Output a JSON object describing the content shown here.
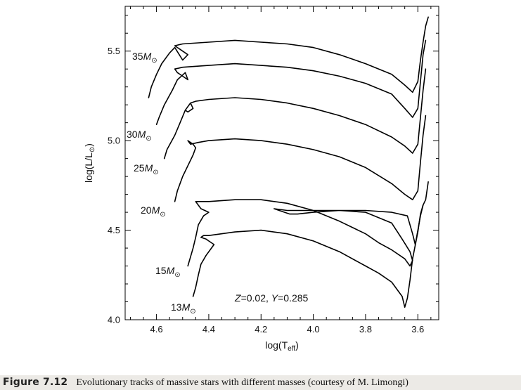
{
  "chart_data": {
    "type": "line",
    "title": "",
    "xlabel": "log(T",
    "xlabel_sub": "eff",
    "xlabel_end": ")",
    "ylabel": "log(L/L",
    "ylabel_sub": "⊙",
    "ylabel_end": ")",
    "xlim": [
      4.72,
      3.52
    ],
    "ylim": [
      4.0,
      5.75
    ],
    "x_reversed": true,
    "xticks": [
      4.6,
      4.4,
      4.2,
      4.0,
      3.8,
      3.6
    ],
    "xtick_labels": [
      "4.6",
      "4.4",
      "4.2",
      "4.0",
      "3.8",
      "3.6"
    ],
    "yticks": [
      4.0,
      4.5,
      5.0,
      5.5
    ],
    "ytick_labels": [
      "4.0",
      "4.5",
      "5.0",
      "5.5"
    ],
    "grid": false,
    "annotation": {
      "z_label": "Z",
      "z_value": "=0.02, ",
      "y_label": "Y",
      "y_value": "=0.285"
    },
    "series": [
      {
        "mass": "35",
        "label_text": "35M",
        "label_sub": "⊙",
        "points": [
          [
            4.63,
            5.24
          ],
          [
            4.62,
            5.3
          ],
          [
            4.6,
            5.37
          ],
          [
            4.58,
            5.43
          ],
          [
            4.55,
            5.49
          ],
          [
            4.53,
            5.52
          ],
          [
            4.5,
            5.45
          ],
          [
            4.48,
            5.48
          ],
          [
            4.51,
            5.51
          ],
          [
            4.53,
            5.53
          ],
          [
            4.5,
            5.54
          ],
          [
            4.4,
            5.55
          ],
          [
            4.3,
            5.56
          ],
          [
            4.2,
            5.55
          ],
          [
            4.1,
            5.54
          ],
          [
            4.0,
            5.52
          ],
          [
            3.9,
            5.48
          ],
          [
            3.8,
            5.43
          ],
          [
            3.7,
            5.37
          ],
          [
            3.65,
            5.31
          ],
          [
            3.62,
            5.27
          ],
          [
            3.6,
            5.33
          ],
          [
            3.59,
            5.45
          ],
          [
            3.58,
            5.55
          ],
          [
            3.57,
            5.64
          ],
          [
            3.56,
            5.69
          ]
        ]
      },
      {
        "mass": "30",
        "label_text": "30M",
        "label_sub": "⊙",
        "points": [
          [
            4.6,
            5.09
          ],
          [
            4.59,
            5.13
          ],
          [
            4.57,
            5.2
          ],
          [
            4.54,
            5.28
          ],
          [
            4.52,
            5.34
          ],
          [
            4.49,
            5.38
          ],
          [
            4.48,
            5.34
          ],
          [
            4.52,
            5.38
          ],
          [
            4.53,
            5.4
          ],
          [
            4.5,
            5.41
          ],
          [
            4.4,
            5.42
          ],
          [
            4.3,
            5.43
          ],
          [
            4.2,
            5.42
          ],
          [
            4.1,
            5.41
          ],
          [
            4.0,
            5.39
          ],
          [
            3.9,
            5.36
          ],
          [
            3.8,
            5.32
          ],
          [
            3.7,
            5.26
          ],
          [
            3.65,
            5.18
          ],
          [
            3.62,
            5.13
          ],
          [
            3.6,
            5.18
          ],
          [
            3.59,
            5.33
          ],
          [
            3.58,
            5.48
          ],
          [
            3.57,
            5.56
          ]
        ]
      },
      {
        "mass": "25",
        "label_text": "25M",
        "label_sub": "⊙",
        "points": [
          [
            4.57,
            4.9
          ],
          [
            4.56,
            4.95
          ],
          [
            4.53,
            5.03
          ],
          [
            4.51,
            5.1
          ],
          [
            4.49,
            5.17
          ],
          [
            4.47,
            5.21
          ],
          [
            4.46,
            5.18
          ],
          [
            4.48,
            5.16
          ],
          [
            4.49,
            5.17
          ],
          [
            4.47,
            5.21
          ],
          [
            4.45,
            5.22
          ],
          [
            4.4,
            5.23
          ],
          [
            4.3,
            5.24
          ],
          [
            4.2,
            5.23
          ],
          [
            4.1,
            5.21
          ],
          [
            4.0,
            5.18
          ],
          [
            3.9,
            5.14
          ],
          [
            3.8,
            5.09
          ],
          [
            3.7,
            5.02
          ],
          [
            3.65,
            4.97
          ],
          [
            3.62,
            4.93
          ],
          [
            3.6,
            4.98
          ],
          [
            3.59,
            5.13
          ],
          [
            3.58,
            5.28
          ],
          [
            3.57,
            5.4
          ]
        ]
      },
      {
        "mass": "20",
        "label_text": "20M",
        "label_sub": "⊙",
        "points": [
          [
            4.53,
            4.66
          ],
          [
            4.52,
            4.72
          ],
          [
            4.5,
            4.8
          ],
          [
            4.48,
            4.86
          ],
          [
            4.46,
            4.92
          ],
          [
            4.45,
            4.96
          ],
          [
            4.46,
            4.98
          ],
          [
            4.48,
            5.0
          ],
          [
            4.47,
            4.98
          ],
          [
            4.44,
            4.99
          ],
          [
            4.4,
            5.0
          ],
          [
            4.3,
            5.01
          ],
          [
            4.2,
            5.0
          ],
          [
            4.1,
            4.98
          ],
          [
            4.0,
            4.95
          ],
          [
            3.9,
            4.91
          ],
          [
            3.8,
            4.85
          ],
          [
            3.7,
            4.76
          ],
          [
            3.65,
            4.7
          ],
          [
            3.62,
            4.67
          ],
          [
            3.6,
            4.72
          ],
          [
            3.59,
            4.88
          ],
          [
            3.58,
            5.03
          ],
          [
            3.57,
            5.14
          ]
        ]
      },
      {
        "mass": "15",
        "label_text": "15M",
        "label_sub": "⊙",
        "points": [
          [
            4.48,
            4.3
          ],
          [
            4.47,
            4.35
          ],
          [
            4.46,
            4.4
          ],
          [
            4.45,
            4.46
          ],
          [
            4.44,
            4.53
          ],
          [
            4.42,
            4.58
          ],
          [
            4.4,
            4.6
          ],
          [
            4.43,
            4.62
          ],
          [
            4.45,
            4.66
          ],
          [
            4.4,
            4.66
          ],
          [
            4.3,
            4.67
          ],
          [
            4.2,
            4.67
          ],
          [
            4.1,
            4.65
          ],
          [
            4.0,
            4.61
          ],
          [
            3.9,
            4.55
          ],
          [
            3.8,
            4.48
          ],
          [
            3.75,
            4.43
          ],
          [
            3.7,
            4.39
          ],
          [
            3.65,
            4.34
          ],
          [
            3.63,
            4.3
          ],
          [
            3.62,
            4.33
          ],
          [
            3.63,
            4.38
          ],
          [
            3.66,
            4.45
          ],
          [
            3.7,
            4.54
          ],
          [
            3.8,
            4.6
          ],
          [
            3.9,
            4.61
          ],
          [
            4.0,
            4.61
          ],
          [
            4.1,
            4.61
          ],
          [
            4.15,
            4.62
          ],
          [
            4.09,
            4.59
          ],
          [
            4.06,
            4.59
          ],
          [
            4.0,
            4.6
          ],
          [
            3.9,
            4.61
          ],
          [
            3.8,
            4.61
          ],
          [
            3.7,
            4.6
          ],
          [
            3.64,
            4.58
          ],
          [
            3.62,
            4.48
          ],
          [
            3.61,
            4.42
          ],
          [
            3.6,
            4.5
          ],
          [
            3.59,
            4.58
          ],
          [
            3.58,
            4.64
          ],
          [
            3.57,
            4.67
          ],
          [
            3.56,
            4.77
          ]
        ]
      },
      {
        "mass": "13",
        "label_text": "13M",
        "label_sub": "⊙",
        "points": [
          [
            4.46,
            4.13
          ],
          [
            4.45,
            4.18
          ],
          [
            4.44,
            4.25
          ],
          [
            4.43,
            4.31
          ],
          [
            4.41,
            4.36
          ],
          [
            4.39,
            4.4
          ],
          [
            4.38,
            4.42
          ],
          [
            4.4,
            4.44
          ],
          [
            4.41,
            4.45
          ],
          [
            4.43,
            4.46
          ],
          [
            4.42,
            4.47
          ],
          [
            4.4,
            4.47
          ],
          [
            4.3,
            4.49
          ],
          [
            4.2,
            4.5
          ],
          [
            4.1,
            4.48
          ],
          [
            4.0,
            4.44
          ],
          [
            3.9,
            4.38
          ],
          [
            3.8,
            4.3
          ],
          [
            3.75,
            4.26
          ],
          [
            3.7,
            4.21
          ],
          [
            3.66,
            4.13
          ],
          [
            3.65,
            4.07
          ],
          [
            3.64,
            4.12
          ],
          [
            3.63,
            4.22
          ],
          [
            3.62,
            4.34
          ],
          [
            3.6,
            4.49
          ],
          [
            3.59,
            4.59
          ],
          [
            3.58,
            4.64
          ]
        ]
      }
    ]
  },
  "caption": {
    "figure_label": "Figure 7.12",
    "text": "Evolutionary tracks of massive stars with different masses (courtesy of M. Limongi)"
  }
}
